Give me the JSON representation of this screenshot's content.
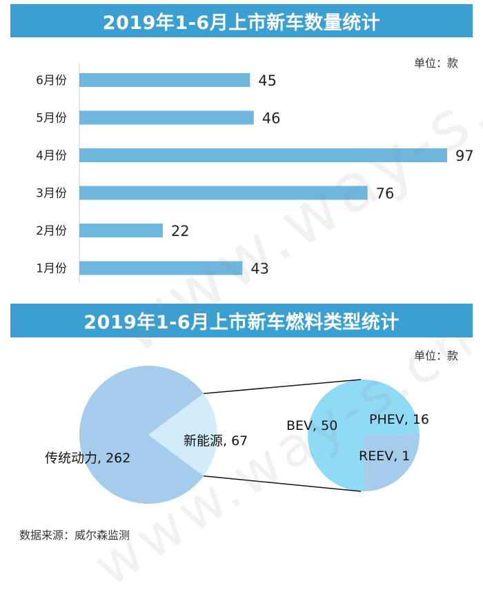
{
  "chart_data": [
    {
      "type": "bar",
      "title": "2019年1-6月上市新车数量统计",
      "unit_label": "单位：款",
      "categories": [
        "6月份",
        "5月份",
        "4月份",
        "3月份",
        "2月份",
        "1月份"
      ],
      "values": [
        45,
        46,
        97,
        76,
        22,
        43
      ],
      "xlim": [
        0,
        97
      ],
      "bar_color": "#6db6dd"
    },
    {
      "type": "pie",
      "title": "2019年1-6月上市新车燃料类型统计",
      "unit_label": "单位：款",
      "main_pie": [
        {
          "label": "传统动力, 262",
          "name": "传统动力",
          "value": 262,
          "color": "#a5cdeb"
        },
        {
          "label": "新能源, 67",
          "name": "新能源",
          "value": 67,
          "color": "#d2ecfa"
        }
      ],
      "sub_pie": [
        {
          "label": "BEV, 50",
          "name": "BEV",
          "value": 50,
          "color": "#8fdaf5"
        },
        {
          "label": "PHEV, 16",
          "name": "PHEV",
          "value": 16,
          "color": "#a5cdeb"
        },
        {
          "label": "REEV, 1",
          "name": "REEV",
          "value": 1,
          "color": "#a5cdeb"
        }
      ]
    }
  ],
  "source": "数据来源：威尔森监测",
  "watermark": "www.way-s.cn"
}
